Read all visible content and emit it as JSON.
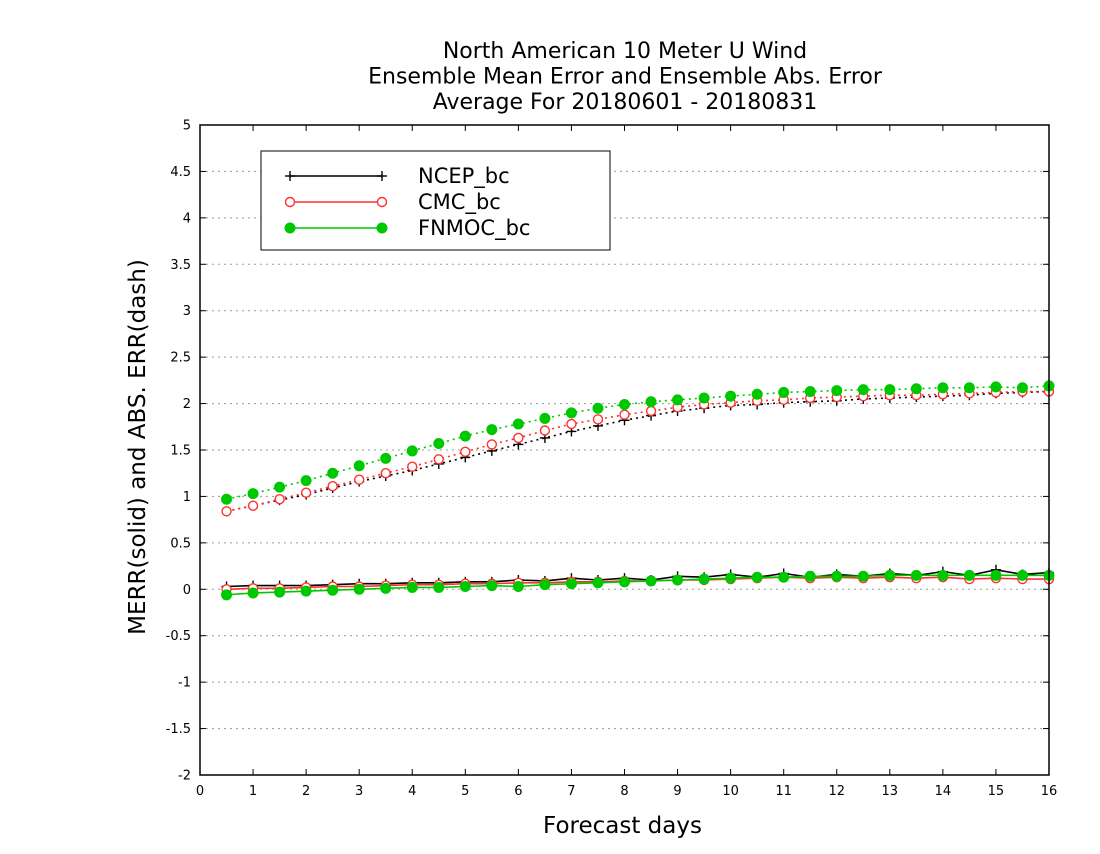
{
  "chart_data": {
    "type": "line",
    "title": [
      "North American 10 Meter U Wind",
      "Ensemble Mean Error and Ensemble Abs. Error",
      "Average For 20180601 - 20180831"
    ],
    "xlabel": "Forecast days",
    "ylabel": "MERR(solid) and ABS. ERR(dash)",
    "xlim": [
      0,
      16
    ],
    "ylim": [
      -2,
      5
    ],
    "xticks": [
      "0",
      "1",
      "2",
      "3",
      "4",
      "5",
      "6",
      "7",
      "8",
      "9",
      "10",
      "11",
      "12",
      "13",
      "14",
      "15",
      "16"
    ],
    "yticks": [
      "-2",
      "-1.5",
      "-1",
      "-0.5",
      "0",
      "0.5",
      "1",
      "1.5",
      "2",
      "2.5",
      "3",
      "3.5",
      "4",
      "4.5",
      "5"
    ],
    "grid": true,
    "legend_position": "top-left",
    "x": [
      0.5,
      1,
      1.5,
      2,
      2.5,
      3,
      3.5,
      4,
      4.5,
      5,
      5.5,
      6,
      6.5,
      7,
      7.5,
      8,
      8.5,
      9,
      9.5,
      10,
      10.5,
      11,
      11.5,
      12,
      12.5,
      13,
      13.5,
      14,
      14.5,
      15,
      15.5,
      16
    ],
    "series": [
      {
        "name": "NCEP_bc",
        "color": "#000000",
        "marker": "plus",
        "merr": [
          0.03,
          0.04,
          0.04,
          0.04,
          0.05,
          0.06,
          0.06,
          0.07,
          0.07,
          0.08,
          0.08,
          0.1,
          0.09,
          0.12,
          0.1,
          0.12,
          0.1,
          0.14,
          0.13,
          0.16,
          0.13,
          0.17,
          0.13,
          0.16,
          0.14,
          0.17,
          0.15,
          0.19,
          0.15,
          0.21,
          0.16,
          0.18
        ],
        "abs_err": [
          0.84,
          0.9,
          0.96,
          1.02,
          1.09,
          1.16,
          1.22,
          1.28,
          1.35,
          1.42,
          1.49,
          1.56,
          1.63,
          1.7,
          1.76,
          1.82,
          1.87,
          1.92,
          1.95,
          1.98,
          1.99,
          2.01,
          2.02,
          2.03,
          2.05,
          2.06,
          2.07,
          2.08,
          2.09,
          2.11,
          2.12,
          2.13
        ]
      },
      {
        "name": "CMC_bc",
        "color": "#ff3030",
        "marker": "open-circle",
        "merr": [
          0.0,
          0.01,
          0.01,
          0.02,
          0.03,
          0.03,
          0.04,
          0.05,
          0.05,
          0.06,
          0.06,
          0.07,
          0.07,
          0.08,
          0.08,
          0.09,
          0.09,
          0.1,
          0.1,
          0.11,
          0.12,
          0.13,
          0.12,
          0.13,
          0.12,
          0.13,
          0.12,
          0.13,
          0.11,
          0.12,
          0.11,
          0.11
        ],
        "abs_err": [
          0.84,
          0.9,
          0.97,
          1.04,
          1.11,
          1.18,
          1.25,
          1.32,
          1.4,
          1.48,
          1.56,
          1.63,
          1.71,
          1.78,
          1.83,
          1.88,
          1.92,
          1.96,
          1.99,
          2.01,
          2.03,
          2.04,
          2.06,
          2.07,
          2.08,
          2.09,
          2.09,
          2.1,
          2.11,
          2.12,
          2.13,
          2.13
        ]
      },
      {
        "name": "FNMOC_bc",
        "color": "#00c800",
        "marker": "filled-circle",
        "merr": [
          -0.06,
          -0.04,
          -0.03,
          -0.02,
          -0.01,
          0.0,
          0.01,
          0.02,
          0.02,
          0.03,
          0.04,
          0.03,
          0.05,
          0.06,
          0.07,
          0.08,
          0.09,
          0.1,
          0.11,
          0.12,
          0.13,
          0.13,
          0.14,
          0.14,
          0.14,
          0.15,
          0.15,
          0.15,
          0.15,
          0.15,
          0.15,
          0.15
        ],
        "abs_err": [
          0.97,
          1.03,
          1.1,
          1.17,
          1.25,
          1.33,
          1.41,
          1.49,
          1.57,
          1.65,
          1.72,
          1.78,
          1.84,
          1.9,
          1.95,
          1.99,
          2.02,
          2.04,
          2.06,
          2.08,
          2.1,
          2.12,
          2.13,
          2.14,
          2.15,
          2.15,
          2.16,
          2.17,
          2.17,
          2.18,
          2.17,
          2.19
        ]
      }
    ]
  }
}
